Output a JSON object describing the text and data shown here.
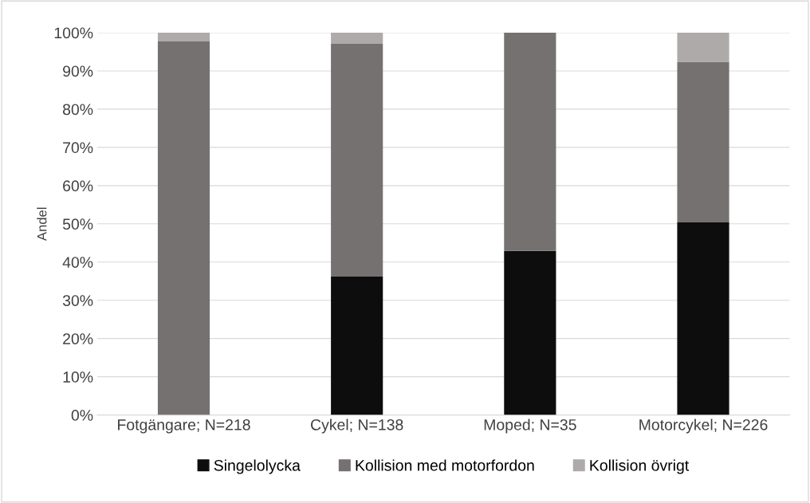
{
  "chart_data": {
    "type": "bar",
    "stacked": true,
    "ylabel": "Andel",
    "categories": [
      "Fotgängare; N=218",
      "Cykel; N=138",
      "Moped; N=35",
      "Motorcykel; N=226"
    ],
    "series": [
      {
        "name": "Singelolycka",
        "color": "#0d0d0d",
        "values": [
          0,
          36.2,
          42.9,
          50.4
        ]
      },
      {
        "name": "Kollision med motorfordon",
        "color": "#767171",
        "values": [
          97.7,
          60.9,
          57.1,
          42.0
        ]
      },
      {
        "name": "Kollision övrigt",
        "color": "#aeaaaa",
        "values": [
          2.3,
          2.9,
          0,
          7.6
        ]
      }
    ],
    "ylim": [
      0,
      100
    ],
    "yticks": [
      {
        "value": 0,
        "label": "0%"
      },
      {
        "value": 10,
        "label": "10%"
      },
      {
        "value": 20,
        "label": "20%"
      },
      {
        "value": 30,
        "label": "30%"
      },
      {
        "value": 40,
        "label": "40%"
      },
      {
        "value": 50,
        "label": "50%"
      },
      {
        "value": 60,
        "label": "60%"
      },
      {
        "value": 70,
        "label": "70%"
      },
      {
        "value": 80,
        "label": "80%"
      },
      {
        "value": 90,
        "label": "90%"
      },
      {
        "value": 100,
        "label": "100%"
      }
    ],
    "grid": "y",
    "legend": "bottom"
  }
}
